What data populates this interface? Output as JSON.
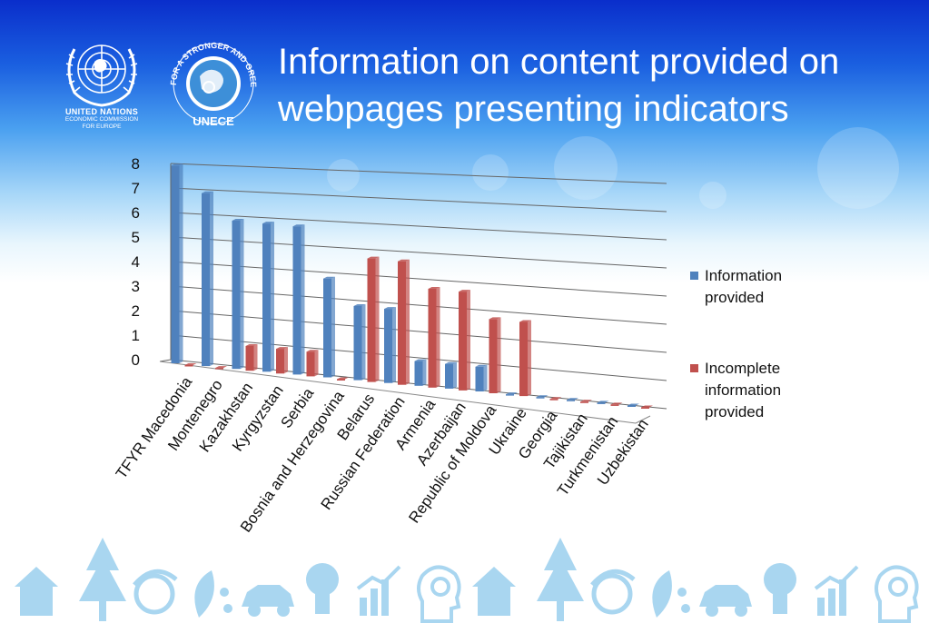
{
  "title": "Information on content provided on webpages presenting indicators",
  "logos": {
    "un": {
      "line1": "UNITED NATIONS",
      "line2": "ECONOMIC COMMISSION",
      "line3": "FOR EUROPE",
      "icon": "un-emblem-icon"
    },
    "unece": {
      "arc_text": "FOR A STRONGER AND GREENER ECONOMY",
      "brand": "UNECE",
      "icon": "unece-green-economy-icon"
    }
  },
  "colors": {
    "series1": "#4f81bd",
    "series2": "#c0504d",
    "title": "#ffffff"
  },
  "chart_data": {
    "type": "bar",
    "title": "",
    "xlabel": "",
    "ylabel": "",
    "ylim": [
      0,
      8
    ],
    "yticks": [
      "0",
      "1",
      "2",
      "3",
      "4",
      "5",
      "6",
      "7",
      "8"
    ],
    "grid": true,
    "legend_position": "right",
    "categories": [
      "TFYR Macedonia",
      "Montenegro",
      "Kazakhstan",
      "Kyrgyzstan",
      "Serbia",
      "Bosnia and Herzegovina",
      "Belarus",
      "Russian Federation",
      "Armenia",
      "Azerbaijan",
      "Republic of Moldova",
      "Ukraine",
      "Georgia",
      "Tajikistan",
      "Turkmenistan",
      "Uzbekistan"
    ],
    "series": [
      {
        "name": "Information provided",
        "values": [
          8,
          7,
          6,
          6,
          6,
          4,
          3,
          3,
          1,
          1,
          1,
          0,
          0,
          0,
          0,
          0
        ]
      },
      {
        "name": "Incomplete information provided",
        "values": [
          0,
          0,
          1,
          1,
          1,
          0,
          5,
          5,
          4,
          4,
          3,
          3,
          0,
          0,
          0,
          0
        ]
      }
    ]
  },
  "footer_icons": [
    "house-icon",
    "tree-icon",
    "recycle-globe-icon",
    "leaf-water-icon",
    "car-icon",
    "lightbulb-icon",
    "growth-chart-icon",
    "head-gear-icon",
    "house-icon",
    "tree-icon",
    "recycle-globe-icon",
    "leaf-water-icon",
    "car-icon",
    "lightbulb-icon",
    "growth-chart-icon",
    "head-gear-icon"
  ]
}
